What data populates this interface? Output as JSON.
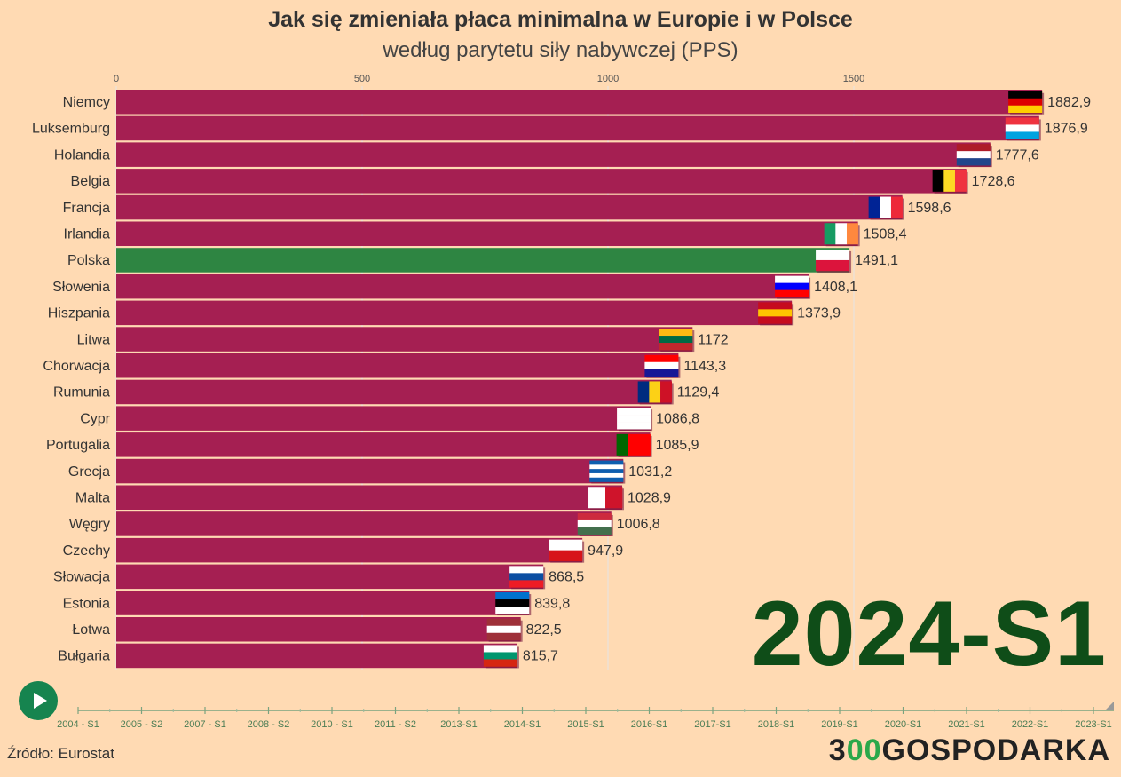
{
  "header": {
    "title": "Jak się zmieniała płaca minimalna w Europie i w Polsce",
    "subtitle": "według parytetu siły nabywczej (PPS)"
  },
  "period_label": "2024-S1",
  "footer": {
    "source": "Źródło: Eurostat",
    "logo_prefix": "3",
    "logo_accent": "00",
    "logo_suffix": "GOSPODARKA"
  },
  "colors": {
    "bar": "#a51f52",
    "highlight_bar": "#2e8542",
    "background": "#ffdab3",
    "accent": "#16844f"
  },
  "timeline": {
    "labels": [
      "2004 - S1",
      "2005 - S2",
      "2007 - S1",
      "2008 - S2",
      "2010 - S1",
      "2011 - S2",
      "2013-S1",
      "2014-S1",
      "2015-S1",
      "2016-S1",
      "2017-S1",
      "2018-S1",
      "2019-S1",
      "2020-S1",
      "2021-S1",
      "2022-S1",
      "2023-S1"
    ]
  },
  "chart_data": {
    "type": "bar",
    "orientation": "horizontal",
    "xlim": [
      0,
      1900
    ],
    "x_ticks": [
      "0",
      "500",
      "1000",
      "1500"
    ],
    "highlight": "Polska",
    "categories": [
      "Niemcy",
      "Luksemburg",
      "Holandia",
      "Belgia",
      "Francja",
      "Irlandia",
      "Polska",
      "Słowenia",
      "Hiszpania",
      "Litwa",
      "Chorwacja",
      "Rumunia",
      "Cypr",
      "Portugalia",
      "Grecja",
      "Malta",
      "Węgry",
      "Czechy",
      "Słowacja",
      "Estonia",
      "Łotwa",
      "Bułgaria"
    ],
    "values": [
      1882.9,
      1876.9,
      1777.6,
      1728.6,
      1598.6,
      1508.4,
      1491.1,
      1408.1,
      1373.9,
      1172,
      1143.3,
      1129.4,
      1086.8,
      1085.9,
      1031.2,
      1028.9,
      1006.8,
      947.9,
      868.5,
      839.8,
      822.5,
      815.7
    ],
    "value_labels": [
      "1882,9",
      "1876,9",
      "1777,6",
      "1728,6",
      "1598,6",
      "1508,4",
      "1491,1",
      "1408,1",
      "1373,9",
      "1172",
      "1143,3",
      "1129,4",
      "1086,8",
      "1085,9",
      "1031,2",
      "1028,9",
      "1006,8",
      "947,9",
      "868,5",
      "839,8",
      "822,5",
      "815,7"
    ],
    "flags": [
      {
        "type": "h",
        "colors": [
          "#000000",
          "#dd0000",
          "#ffce00"
        ]
      },
      {
        "type": "h",
        "colors": [
          "#ef3340",
          "#ffffff",
          "#00a3e0"
        ]
      },
      {
        "type": "h",
        "colors": [
          "#ae1c28",
          "#ffffff",
          "#21468b"
        ]
      },
      {
        "type": "v",
        "colors": [
          "#000000",
          "#fdda24",
          "#ef3340"
        ]
      },
      {
        "type": "v",
        "colors": [
          "#002395",
          "#ffffff",
          "#ed2939"
        ]
      },
      {
        "type": "v",
        "colors": [
          "#169b62",
          "#ffffff",
          "#ff883e"
        ]
      },
      {
        "type": "h",
        "colors": [
          "#ffffff",
          "#dc143c"
        ]
      },
      {
        "type": "h",
        "colors": [
          "#ffffff",
          "#0000ff",
          "#ff0000"
        ]
      },
      {
        "type": "h",
        "colors": [
          "#c60b1e",
          "#ffc400",
          "#c60b1e"
        ]
      },
      {
        "type": "h",
        "colors": [
          "#fdb913",
          "#006a44",
          "#c1272d"
        ]
      },
      {
        "type": "h",
        "colors": [
          "#ff0000",
          "#ffffff",
          "#171796"
        ]
      },
      {
        "type": "v",
        "colors": [
          "#002b7f",
          "#fcd116",
          "#ce1126"
        ]
      },
      {
        "type": "h",
        "colors": [
          "#ffffff",
          "#ffffff",
          "#ffffff"
        ]
      },
      {
        "type": "v",
        "colors": [
          "#006600",
          "#ff0000",
          "#ff0000"
        ]
      },
      {
        "type": "h",
        "colors": [
          "#0d5eaf",
          "#ffffff",
          "#0d5eaf",
          "#ffffff",
          "#0d5eaf"
        ]
      },
      {
        "type": "v",
        "colors": [
          "#ffffff",
          "#cf142b"
        ]
      },
      {
        "type": "h",
        "colors": [
          "#cd2a3e",
          "#ffffff",
          "#436f4d"
        ]
      },
      {
        "type": "h",
        "colors": [
          "#ffffff",
          "#d7141a"
        ]
      },
      {
        "type": "h",
        "colors": [
          "#ffffff",
          "#0b4ea2",
          "#ee1c25"
        ]
      },
      {
        "type": "h",
        "colors": [
          "#0072ce",
          "#000000",
          "#ffffff"
        ]
      },
      {
        "type": "h",
        "colors": [
          "#9e3039",
          "#ffffff",
          "#9e3039"
        ]
      },
      {
        "type": "h",
        "colors": [
          "#ffffff",
          "#00966e",
          "#d62612"
        ]
      }
    ]
  }
}
